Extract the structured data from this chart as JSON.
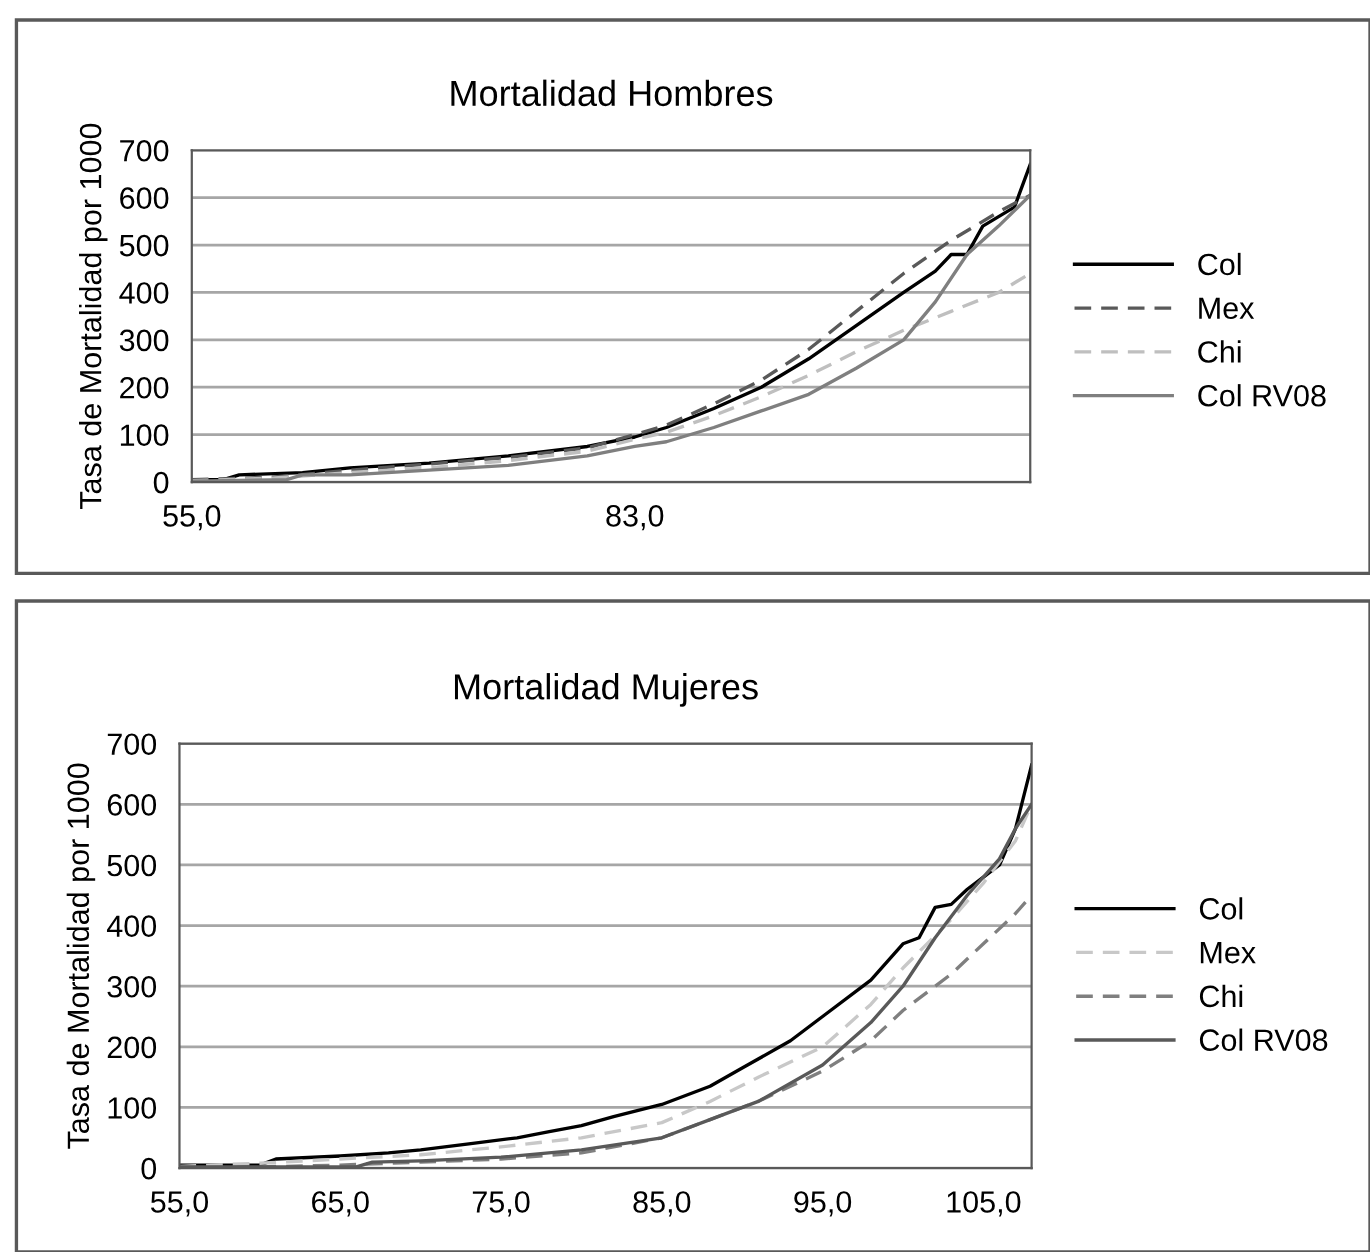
{
  "chart_data": [
    {
      "type": "line",
      "title": "Mortalidad Hombres",
      "ylabel": "Tasa de Mortalidad por 1000",
      "xlim": [
        55,
        108
      ],
      "xticks": [
        {
          "value": 55,
          "label": "55,0"
        },
        {
          "value": 83,
          "label": "83,0"
        }
      ],
      "ylim": [
        0,
        700
      ],
      "yticks": [
        0,
        100,
        200,
        300,
        400,
        500,
        600,
        700
      ],
      "grid": "y",
      "legend": "right",
      "series": [
        {
          "name": "Col",
          "color": "#000000",
          "line_style": "solid",
          "x": [
            55,
            57,
            58,
            62,
            65,
            70,
            75,
            80,
            83,
            85,
            88,
            91,
            94,
            97,
            100,
            102,
            103,
            104,
            105,
            107,
            108
          ],
          "values": [
            5,
            5,
            15,
            20,
            30,
            40,
            55,
            75,
            95,
            115,
            155,
            200,
            260,
            330,
            400,
            445,
            480,
            480,
            540,
            580,
            670
          ]
        },
        {
          "name": "Mex",
          "color": "#595959",
          "line_style": "dashed",
          "x": [
            55,
            60,
            65,
            70,
            75,
            80,
            83,
            85,
            88,
            91,
            94,
            97,
            100,
            103,
            106,
            108
          ],
          "values": [
            5,
            10,
            25,
            38,
            52,
            72,
            100,
            120,
            165,
            215,
            280,
            360,
            440,
            510,
            570,
            605
          ]
        },
        {
          "name": "Chi",
          "color": "#bfbfbf",
          "line_style": "dashed",
          "x": [
            55,
            60,
            65,
            70,
            75,
            80,
            83,
            85,
            88,
            91,
            94,
            97,
            100,
            103,
            106,
            108
          ],
          "values": [
            3,
            8,
            20,
            30,
            45,
            65,
            90,
            105,
            140,
            180,
            225,
            275,
            320,
            360,
            400,
            440
          ]
        },
        {
          "name": "Col RV08",
          "color": "#7f7f7f",
          "line_style": "solid",
          "x": [
            55,
            61,
            62,
            65,
            70,
            75,
            80,
            83,
            85,
            88,
            91,
            94,
            97,
            100,
            102,
            104,
            106,
            108
          ],
          "values": [
            2,
            5,
            15,
            15,
            25,
            35,
            55,
            75,
            85,
            115,
            150,
            185,
            240,
            300,
            380,
            480,
            540,
            605
          ]
        }
      ]
    },
    {
      "type": "line",
      "title": "Mortalidad Mujeres",
      "ylabel": "Tasa de Mortalidad por 1000",
      "xlim": [
        55,
        108
      ],
      "xticks": [
        {
          "value": 55,
          "label": "55,0"
        },
        {
          "value": 65,
          "label": "65,0"
        },
        {
          "value": 75,
          "label": "75,0"
        },
        {
          "value": 85,
          "label": "85,0"
        },
        {
          "value": 95,
          "label": "95,0"
        },
        {
          "value": 105,
          "label": "105,0"
        }
      ],
      "ylim": [
        0,
        700
      ],
      "yticks": [
        0,
        100,
        200,
        300,
        400,
        500,
        600,
        700
      ],
      "grid": "y",
      "legend": "right",
      "series": [
        {
          "name": "Col",
          "color": "#000000",
          "line_style": "solid",
          "x": [
            55,
            60,
            61,
            65,
            68,
            70,
            73,
            76,
            78,
            80,
            82,
            85,
            88,
            90,
            93,
            95,
            98,
            100,
            101,
            102,
            103,
            104,
            105,
            106,
            107,
            108
          ],
          "values": [
            5,
            5,
            15,
            20,
            25,
            30,
            40,
            50,
            60,
            70,
            85,
            105,
            135,
            165,
            210,
            250,
            310,
            370,
            380,
            430,
            435,
            460,
            480,
            500,
            560,
            665
          ]
        },
        {
          "name": "Mex",
          "color": "#c8c8c8",
          "line_style": "dashed",
          "x": [
            55,
            60,
            65,
            70,
            75,
            80,
            85,
            88,
            91,
            95,
            98,
            100,
            103,
            105,
            107,
            108
          ],
          "values": [
            3,
            8,
            15,
            22,
            35,
            50,
            75,
            110,
            150,
            200,
            270,
            330,
            410,
            470,
            540,
            600
          ]
        },
        {
          "name": "Chi",
          "color": "#7f7f7f",
          "line_style": "dashed",
          "x": [
            55,
            60,
            65,
            70,
            75,
            80,
            85,
            88,
            91,
            95,
            98,
            100,
            103,
            105,
            107,
            108
          ],
          "values": [
            1,
            2,
            5,
            10,
            15,
            25,
            50,
            80,
            110,
            160,
            210,
            260,
            320,
            370,
            420,
            450
          ]
        },
        {
          "name": "Col RV08",
          "color": "#595959",
          "line_style": "solid",
          "x": [
            55,
            66,
            67,
            70,
            75,
            80,
            85,
            88,
            91,
            95,
            98,
            100,
            102,
            104,
            106,
            107,
            108
          ],
          "values": [
            2,
            2,
            10,
            12,
            18,
            30,
            50,
            80,
            110,
            170,
            240,
            300,
            380,
            450,
            510,
            560,
            600
          ]
        }
      ]
    }
  ]
}
